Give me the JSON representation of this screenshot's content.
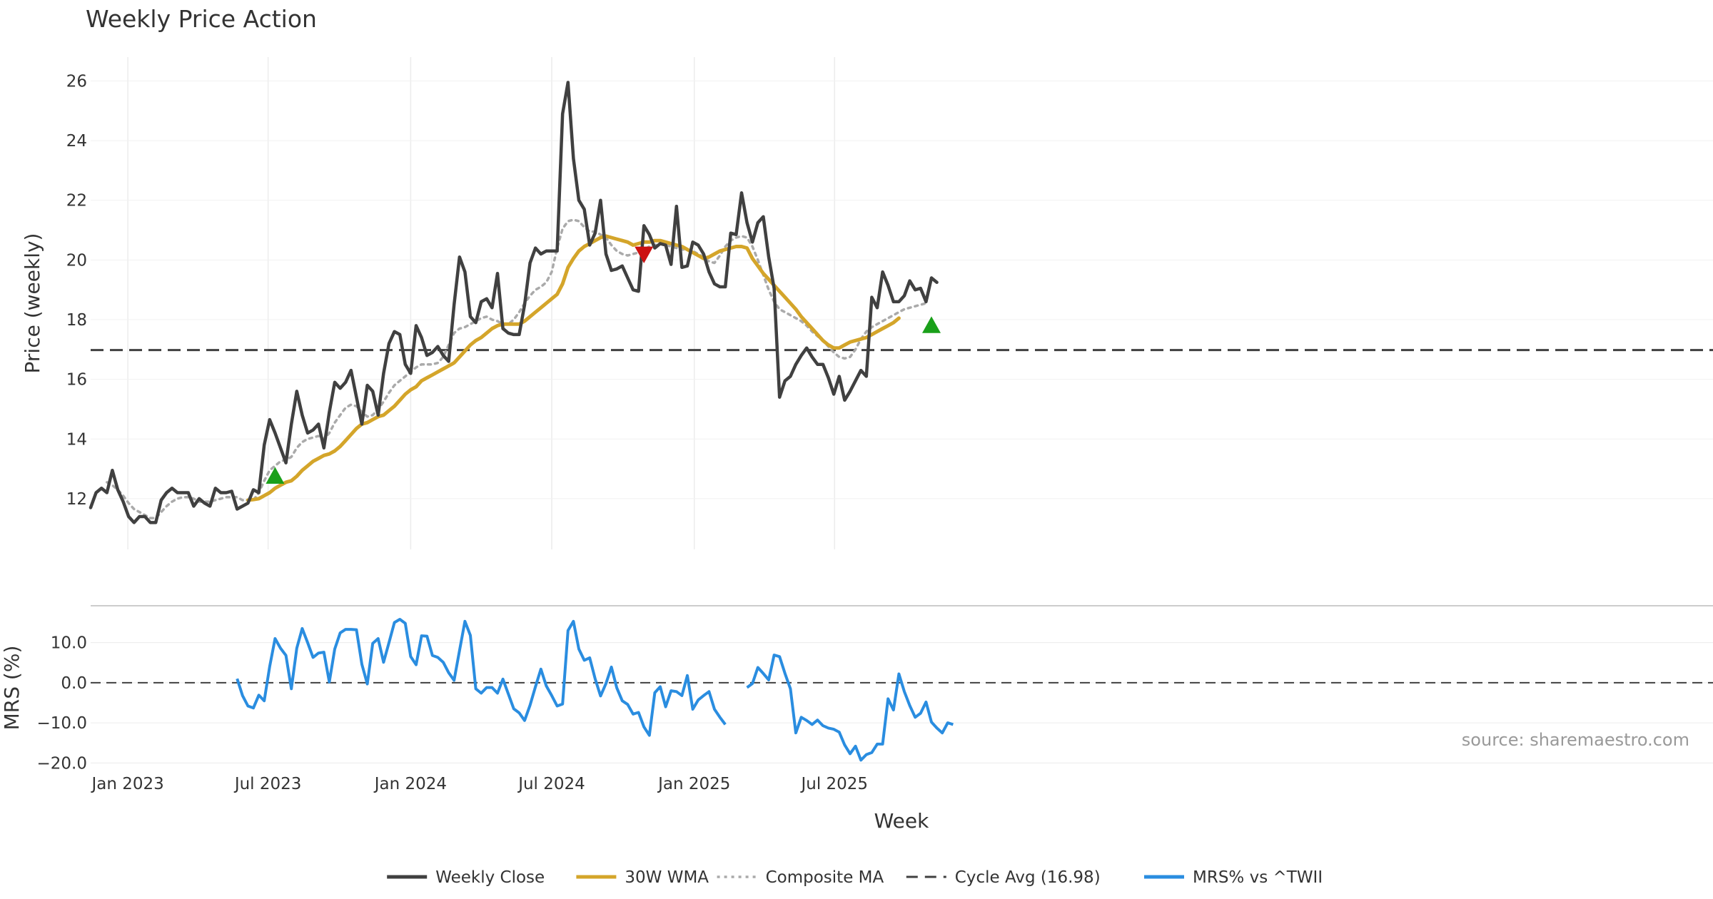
{
  "chart_data": {
    "type": "line",
    "title": "Weekly Price Action",
    "source": "source: sharemaestro.com",
    "xlabel": "Week",
    "x_start": "2022-11-14",
    "x_ticks": [
      "Jan 2023",
      "Jul 2023",
      "Jan 2024",
      "Jul 2024",
      "Jan 2025",
      "Jul 2025"
    ],
    "price_panel": {
      "ylabel": "Price (weekly)",
      "ylim": [
        10.3,
        26.8
      ],
      "yticks": [
        "12",
        "14",
        "16",
        "18",
        "20",
        "22",
        "24",
        "26"
      ],
      "cycle_avg": 16.98,
      "series": [
        {
          "name": "Weekly Close",
          "color": "#404040",
          "start_index": 0,
          "values": [
            11.7,
            12.2,
            12.35,
            12.2,
            12.95,
            12.3,
            11.9,
            11.4,
            11.2,
            11.4,
            11.4,
            11.2,
            11.2,
            11.95,
            12.2,
            12.35,
            12.2,
            12.2,
            12.2,
            11.75,
            12.0,
            11.85,
            11.75,
            12.35,
            12.2,
            12.2,
            12.25,
            11.65,
            11.75,
            11.85,
            12.3,
            12.2,
            13.8,
            14.65,
            14.2,
            13.7,
            13.2,
            14.5,
            15.6,
            14.8,
            14.2,
            14.3,
            14.5,
            13.7,
            14.9,
            15.9,
            15.7,
            15.9,
            16.3,
            15.4,
            14.5,
            15.8,
            15.6,
            14.8,
            16.2,
            17.2,
            17.6,
            17.5,
            16.5,
            16.2,
            17.8,
            17.4,
            16.8,
            16.9,
            17.1,
            16.8,
            16.6,
            18.5,
            20.1,
            19.6,
            18.1,
            17.9,
            18.6,
            18.7,
            18.4,
            19.55,
            17.7,
            17.55,
            17.5,
            17.5,
            18.5,
            19.9,
            20.4,
            20.2,
            20.3,
            20.3,
            20.3,
            24.9,
            25.95,
            23.4,
            22.0,
            21.7,
            20.5,
            20.9,
            22.0,
            20.2,
            19.65,
            19.7,
            19.8,
            19.4,
            19.0,
            18.95,
            21.15,
            20.85,
            20.4,
            20.55,
            20.5,
            19.85,
            21.8,
            19.75,
            19.8,
            20.6,
            20.5,
            20.2,
            19.6,
            19.2,
            19.1,
            19.1,
            20.9,
            20.85,
            22.25,
            21.25,
            20.6,
            21.25,
            21.45,
            20.1,
            19.05,
            15.4,
            15.95,
            16.1,
            16.5,
            16.8,
            17.05,
            16.75,
            16.5,
            16.5,
            16.05,
            15.5,
            16.1,
            15.3,
            15.6,
            15.95,
            16.3,
            16.1,
            18.75,
            18.4,
            19.6,
            19.15,
            18.6,
            18.6,
            18.8,
            19.3,
            19.0,
            19.05,
            18.6,
            19.4,
            19.25
          ]
        },
        {
          "name": "30W WMA",
          "color": "#d4a52a",
          "start_index": 29,
          "values": [
            11.95,
            11.97,
            12.0,
            12.1,
            12.2,
            12.35,
            12.45,
            12.55,
            12.6,
            12.75,
            12.95,
            13.1,
            13.25,
            13.35,
            13.45,
            13.5,
            13.6,
            13.75,
            13.95,
            14.15,
            14.35,
            14.5,
            14.55,
            14.65,
            14.75,
            14.8,
            14.95,
            15.1,
            15.3,
            15.5,
            15.65,
            15.75,
            15.95,
            16.05,
            16.15,
            16.25,
            16.35,
            16.45,
            16.55,
            16.75,
            16.95,
            17.15,
            17.3,
            17.4,
            17.55,
            17.7,
            17.8,
            17.85,
            17.85,
            17.85,
            17.85,
            17.95,
            18.1,
            18.25,
            18.4,
            18.55,
            18.7,
            18.85,
            19.2,
            19.75,
            20.05,
            20.3,
            20.45,
            20.55,
            20.65,
            20.75,
            20.8,
            20.75,
            20.7,
            20.65,
            20.6,
            20.5,
            20.55,
            20.6,
            20.6,
            20.65,
            20.65,
            20.6,
            20.55,
            20.5,
            20.45,
            20.35,
            20.25,
            20.15,
            20.05,
            20.1,
            20.2,
            20.3,
            20.35,
            20.4,
            20.45,
            20.45,
            20.4,
            20.05,
            19.8,
            19.55,
            19.35,
            19.15,
            18.95,
            18.75,
            18.55,
            18.35,
            18.1,
            17.9,
            17.7,
            17.5,
            17.3,
            17.15,
            17.05,
            17.05,
            17.15,
            17.25,
            17.3,
            17.35,
            17.4,
            17.5,
            17.6,
            17.7,
            17.8,
            17.9,
            18.05
          ]
        },
        {
          "name": "Composite MA",
          "color": "#aaaaaa",
          "start_index": 3,
          "values": [
            12.55,
            12.45,
            12.3,
            12.1,
            11.85,
            11.65,
            11.55,
            11.45,
            11.35,
            11.35,
            11.55,
            11.75,
            11.9,
            12.0,
            12.05,
            12.05,
            12.0,
            11.9,
            11.9,
            11.9,
            11.95,
            12.0,
            12.05,
            12.05,
            12.05,
            11.95,
            11.95,
            11.95,
            12.2,
            12.6,
            12.95,
            13.1,
            13.25,
            13.3,
            13.4,
            13.7,
            13.9,
            14.0,
            14.05,
            14.1,
            14.0,
            14.2,
            14.55,
            14.8,
            15.05,
            15.15,
            15.1,
            14.9,
            14.75,
            14.8,
            15.0,
            15.25,
            15.55,
            15.8,
            15.95,
            16.1,
            16.25,
            16.4,
            16.5,
            16.5,
            16.5,
            16.55,
            16.75,
            17.15,
            17.55,
            17.7,
            17.75,
            17.85,
            17.95,
            18.05,
            18.1,
            18.0,
            17.95,
            17.85,
            17.85,
            18.0,
            18.25,
            18.55,
            18.8,
            19.0,
            19.1,
            19.25,
            19.6,
            20.4,
            21.05,
            21.3,
            21.35,
            21.3,
            21.1,
            20.95,
            20.95,
            20.85,
            20.75,
            20.5,
            20.3,
            20.2,
            20.15,
            20.2,
            20.25,
            20.35,
            20.45,
            20.5,
            20.55,
            20.5,
            20.45,
            20.4,
            20.35,
            20.35,
            20.3,
            20.2,
            20.1,
            19.95,
            19.9,
            20.15,
            20.45,
            20.65,
            20.75,
            20.8,
            20.75,
            20.45,
            20.0,
            19.5,
            19.0,
            18.6,
            18.35,
            18.25,
            18.15,
            18.05,
            17.95,
            17.8,
            17.6,
            17.45,
            17.3,
            17.1,
            16.9,
            16.75,
            16.7,
            16.75,
            17.0,
            17.35,
            17.6,
            17.75,
            17.85,
            17.95,
            18.05,
            18.15,
            18.25,
            18.35,
            18.4,
            18.45,
            18.5,
            18.55
          ]
        }
      ],
      "markers": [
        {
          "type": "buy",
          "week_index": 34,
          "value": 12.75,
          "color": "#1aa01a"
        },
        {
          "type": "sell",
          "week_index": 102,
          "value": 20.2,
          "color": "#cc1111"
        },
        {
          "type": "buy",
          "week_index": 155,
          "value": 17.8,
          "color": "#1aa01a"
        }
      ]
    },
    "mrs_panel": {
      "ylabel": "MRS (%)",
      "ylim": [
        -21,
        19
      ],
      "yticks": [
        "10.0",
        "0.0",
        "−10.0",
        "−20.0"
      ],
      "zero_line": 0,
      "series": [
        {
          "name": "MRS% vs ^TWII",
          "color": "#2a8de0",
          "segments": [
            {
              "start_index": 27,
              "values": [
                1.0,
                -3.2,
                -5.8,
                -6.3,
                -3.1,
                -4.5,
                4.0,
                11.0,
                8.6,
                6.8,
                -1.5,
                8.6,
                13.5,
                10.0,
                6.3,
                7.4,
                7.6,
                0.2,
                8.4,
                12.4,
                13.3,
                13.3,
                13.2,
                4.6,
                -0.3,
                9.8,
                11.0,
                5.1,
                10.0,
                15.0,
                15.8,
                14.8,
                6.5,
                4.5,
                11.7,
                11.6,
                6.8,
                6.3,
                5.1,
                2.5,
                0.6,
                8.0,
                15.3,
                11.8,
                -1.5,
                -2.6,
                -1.2,
                -1.2,
                -2.6,
                0.9,
                -2.8,
                -6.5,
                -7.5,
                -9.4,
                -5.6,
                -1.0,
                3.4,
                -0.8,
                -3.2,
                -5.8,
                -5.3,
                13.0,
                15.3,
                8.4,
                5.6,
                6.2,
                1.0,
                -3.3,
                -0.2,
                3.9,
                -1.3,
                -4.5,
                -5.4,
                -7.8,
                -7.4,
                -11.0,
                -13.1,
                -2.5,
                -1.0,
                -6.0,
                -2.0,
                -2.2,
                -3.2,
                1.8,
                -6.6,
                -4.3,
                -3.2,
                -2.2,
                -6.6,
                -8.6,
                -10.4
              ]
            },
            {
              "start_index": 121,
              "values": [
                -1.2,
                -0.2,
                3.8,
                2.3,
                0.7,
                6.9,
                6.5,
                2.3,
                -1.5,
                -12.5,
                -8.6,
                -9.4,
                -10.4,
                -9.3,
                -10.7,
                -11.3,
                -11.6,
                -12.3,
                -15.5,
                -17.7,
                -15.8,
                -19.3,
                -17.9,
                -17.4,
                -15.3,
                -15.3,
                -4.0,
                -6.8,
                2.2,
                -2.2,
                -5.7,
                -8.6,
                -7.6,
                -4.8,
                -9.8,
                -11.3,
                -12.5,
                -10.0,
                -10.4
              ]
            }
          ]
        }
      ]
    },
    "legend": [
      {
        "label": "Weekly Close",
        "style": "solid",
        "color": "#404040"
      },
      {
        "label": "30W WMA",
        "style": "solid",
        "color": "#d4a52a"
      },
      {
        "label": "Composite MA",
        "style": "dotted",
        "color": "#aaaaaa"
      },
      {
        "label": "Cycle Avg (16.98)",
        "style": "dashed",
        "color": "#404040"
      },
      {
        "label": "MRS% vs ^TWII",
        "style": "solid",
        "color": "#2a8de0"
      }
    ]
  }
}
